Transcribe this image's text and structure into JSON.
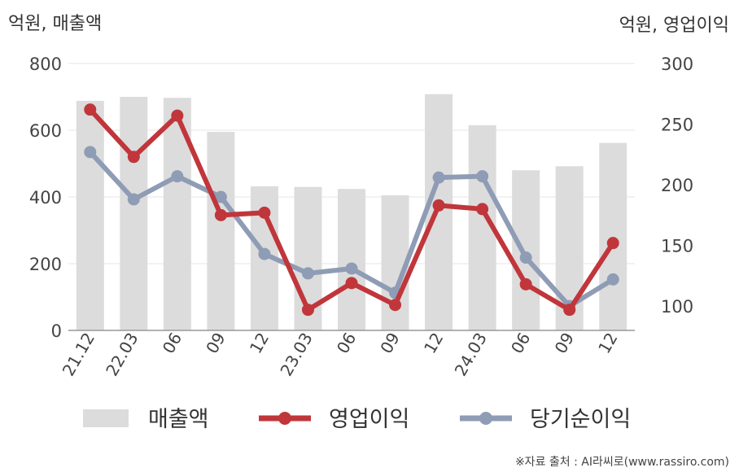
{
  "chart_data": {
    "type": "bar",
    "left_axis_label": "억원, 매출액",
    "right_axis_label": "억원, 영업이익",
    "categories": [
      "21.12",
      "22.03",
      "06",
      "09",
      "12",
      "23.03",
      "06",
      "09",
      "12",
      "24.03",
      "06",
      "09",
      "12"
    ],
    "left_axis": {
      "ylim": [
        0,
        800
      ],
      "ticks": [
        0,
        200,
        400,
        600,
        800
      ]
    },
    "right_axis": {
      "ylim": [
        80,
        300
      ],
      "ticks": [
        100,
        150,
        200,
        250,
        300
      ]
    },
    "series": [
      {
        "name": "매출액",
        "type": "bar",
        "axis": "left",
        "color": "#dcdcdc",
        "values": [
          688,
          700,
          697,
          595,
          432,
          430,
          424,
          405,
          708,
          615,
          480,
          492,
          562
        ]
      },
      {
        "name": "영업이익",
        "type": "line",
        "axis": "right",
        "color": "#c0363b",
        "values": [
          262,
          223,
          257,
          175,
          177,
          97,
          119,
          101,
          183,
          180,
          118,
          97,
          152
        ]
      },
      {
        "name": "당기순이익",
        "type": "line",
        "axis": "right",
        "color": "#8f9cb5",
        "values": [
          227,
          188,
          207,
          190,
          143,
          127,
          131,
          111,
          206,
          207,
          140,
          100,
          122
        ]
      }
    ],
    "grid": true,
    "legend_position": "bottom",
    "source_note": "※자료 출처 : AI라씨로(www.rassiro.com)"
  }
}
